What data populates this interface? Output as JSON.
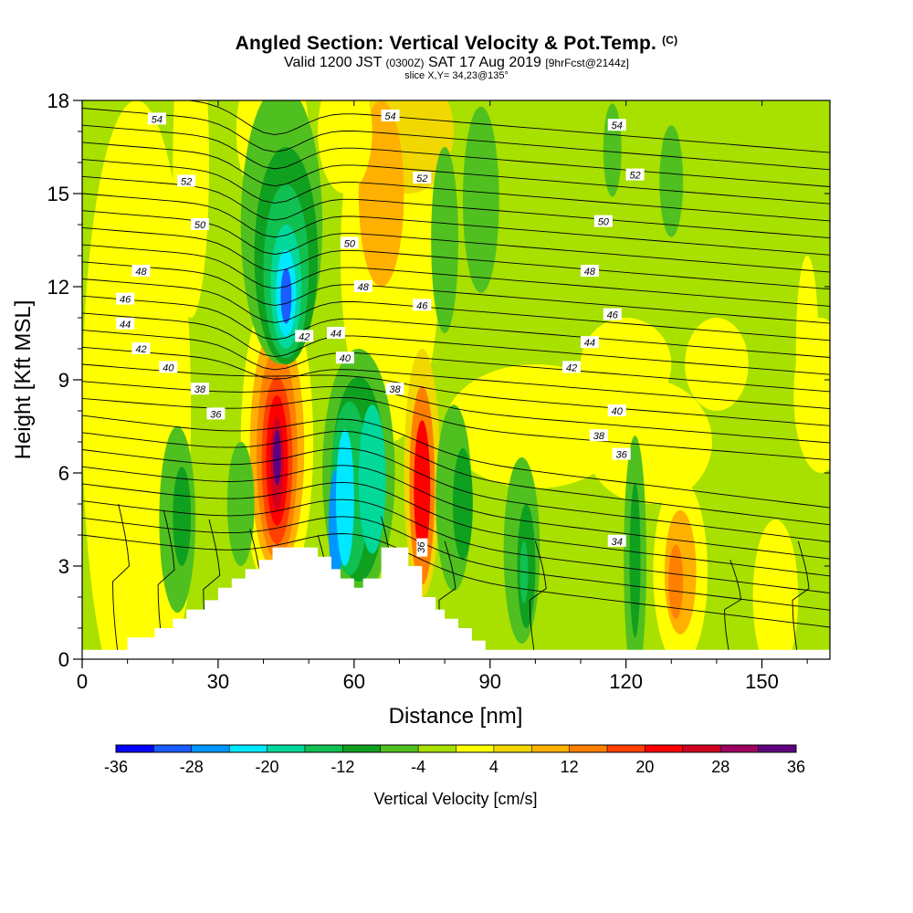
{
  "title": {
    "main": "Angled Section: Vertical Velocity & Pot.Temp.",
    "units_tag": "(C)",
    "valid_a": "Valid 1200 JST",
    "valid_z": "(0300Z)",
    "valid_b": "SAT 17 Aug 2019",
    "forecast": "[9hrFcst@2144z]",
    "slice": "slice X,Y= 34,23@135°"
  },
  "chart_data": {
    "type": "heatmap",
    "xlabel": "Distance [nm]",
    "ylabel": "Height [Kft MSL]",
    "xlim": [
      0,
      165
    ],
    "ylim": [
      0,
      18
    ],
    "x_ticks": [
      "0",
      "30",
      "60",
      "90",
      "120",
      "150"
    ],
    "y_ticks": [
      "0",
      "3",
      "6",
      "9",
      "12",
      "15",
      "18"
    ],
    "colorbar": {
      "label": "Vertical Velocity [cm/s]",
      "tick_labels": [
        "-36",
        "-28",
        "-20",
        "-12",
        "-4",
        "4",
        "12",
        "20",
        "28",
        "36"
      ],
      "colors": [
        "#0000ff",
        "#1a5cff",
        "#0096ff",
        "#00e8ff",
        "#00d99a",
        "#10c050",
        "#10a020",
        "#50c020",
        "#a8e000",
        "#ffff00",
        "#f0d800",
        "#ffb000",
        "#ff8000",
        "#ff4000",
        "#ff0000",
        "#d00020",
        "#a00060",
        "#600080"
      ]
    },
    "terrain_kft": [
      [
        0,
        0.3
      ],
      [
        10,
        0.3
      ],
      [
        10,
        0.7
      ],
      [
        16,
        0.7
      ],
      [
        16,
        1.0
      ],
      [
        20,
        1.0
      ],
      [
        20,
        1.3
      ],
      [
        23,
        1.3
      ],
      [
        23,
        1.6
      ],
      [
        27,
        1.6
      ],
      [
        27,
        1.9
      ],
      [
        30,
        1.9
      ],
      [
        30,
        2.3
      ],
      [
        33,
        2.3
      ],
      [
        33,
        2.6
      ],
      [
        36,
        2.6
      ],
      [
        36,
        2.9
      ],
      [
        39,
        2.9
      ],
      [
        39,
        3.2
      ],
      [
        42,
        3.2
      ],
      [
        42,
        3.6
      ],
      [
        52,
        3.6
      ],
      [
        52,
        3.3
      ],
      [
        55,
        3.3
      ],
      [
        55,
        2.9
      ],
      [
        57,
        2.9
      ],
      [
        57,
        2.6
      ],
      [
        60,
        2.6
      ],
      [
        60,
        2.3
      ],
      [
        62,
        2.3
      ],
      [
        62,
        2.6
      ],
      [
        66,
        2.6
      ],
      [
        66,
        3.6
      ],
      [
        72,
        3.6
      ],
      [
        72,
        3.0
      ],
      [
        75,
        3.0
      ],
      [
        75,
        2.0
      ],
      [
        78,
        2.0
      ],
      [
        78,
        1.6
      ],
      [
        80,
        1.6
      ],
      [
        80,
        1.3
      ],
      [
        83,
        1.3
      ],
      [
        83,
        1.0
      ],
      [
        86,
        1.0
      ],
      [
        86,
        0.6
      ],
      [
        89,
        0.6
      ],
      [
        89,
        0.3
      ],
      [
        165,
        0.3
      ]
    ],
    "theta_labels": [
      {
        "text": "54",
        "x": 16.5,
        "y": 17.4
      },
      {
        "text": "54",
        "x": 68,
        "y": 17.5
      },
      {
        "text": "54",
        "x": 118,
        "y": 17.2
      },
      {
        "text": "52",
        "x": 23,
        "y": 15.4
      },
      {
        "text": "52",
        "x": 75,
        "y": 15.5
      },
      {
        "text": "52",
        "x": 122,
        "y": 15.6
      },
      {
        "text": "50",
        "x": 26,
        "y": 14.0
      },
      {
        "text": "50",
        "x": 59,
        "y": 13.4
      },
      {
        "text": "50",
        "x": 115,
        "y": 14.1
      },
      {
        "text": "48",
        "x": 13,
        "y": 12.5
      },
      {
        "text": "48",
        "x": 62,
        "y": 12.0
      },
      {
        "text": "48",
        "x": 112,
        "y": 12.5
      },
      {
        "text": "46",
        "x": 9.5,
        "y": 11.6
      },
      {
        "text": "46",
        "x": 75,
        "y": 11.4
      },
      {
        "text": "46",
        "x": 117,
        "y": 11.1
      },
      {
        "text": "44",
        "x": 9.5,
        "y": 10.8
      },
      {
        "text": "44",
        "x": 56,
        "y": 10.5
      },
      {
        "text": "44",
        "x": 112,
        "y": 10.2
      },
      {
        "text": "42",
        "x": 13,
        "y": 10.0
      },
      {
        "text": "42",
        "x": 49,
        "y": 10.4
      },
      {
        "text": "42",
        "x": 108,
        "y": 9.4
      },
      {
        "text": "40",
        "x": 19,
        "y": 9.4
      },
      {
        "text": "40",
        "x": 58,
        "y": 9.7
      },
      {
        "text": "40",
        "x": 118,
        "y": 8.0
      },
      {
        "text": "38",
        "x": 26,
        "y": 8.7
      },
      {
        "text": "38",
        "x": 69,
        "y": 8.7
      },
      {
        "text": "38",
        "x": 114,
        "y": 7.2
      },
      {
        "text": "36",
        "x": 29.5,
        "y": 7.9
      },
      {
        "text": "36",
        "x": 119,
        "y": 6.6
      },
      {
        "text": "36",
        "x": 75,
        "y": 3.6
      },
      {
        "text": "34",
        "x": 118,
        "y": 3.8
      }
    ]
  }
}
